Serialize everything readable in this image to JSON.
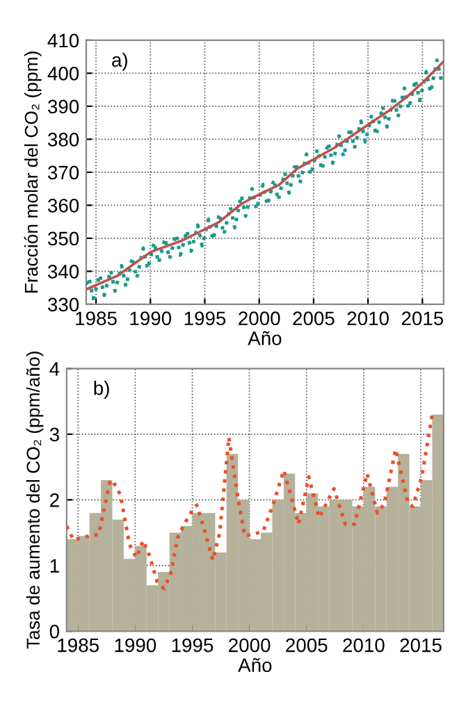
{
  "chart_data": [
    {
      "type": "line",
      "xlabel": "Año",
      "ylabel": "Fracción molar del CO₂ (ppm)",
      "annotations": [
        "a)"
      ],
      "xlim": [
        1984.1,
        2016.95
      ],
      "xticks": [
        1985,
        1990,
        1995,
        2000,
        2005,
        2010,
        2015
      ],
      "ylim": [
        330,
        410
      ],
      "yticks": [
        330,
        340,
        350,
        360,
        370,
        380,
        390,
        400,
        410
      ],
      "grid": true,
      "series": [
        {
          "color": "#1a9a8a",
          "line_style": "dotted",
          "x": [
            1984.1,
            1984.35,
            1984.75,
            1985.35,
            1985.75,
            1986.35,
            1986.75,
            1987.35,
            1987.75,
            1988.35,
            1988.75,
            1989.35,
            1989.75,
            1990.35,
            1990.75,
            1991.35,
            1991.75,
            1992.35,
            1992.75,
            1993.35,
            1993.75,
            1994.35,
            1994.75,
            1995.35,
            1995.75,
            1996.35,
            1996.75,
            1997.35,
            1997.75,
            1998.35,
            1998.75,
            1999.35,
            1999.75,
            2000.35,
            2000.75,
            2001.35,
            2001.75,
            2002.35,
            2002.75,
            2003.35,
            2003.75,
            2004.35,
            2004.75,
            2005.35,
            2005.75,
            2006.35,
            2006.75,
            2007.35,
            2007.75,
            2008.35,
            2008.75,
            2009.35,
            2009.75,
            2010.35,
            2010.75,
            2011.35,
            2011.75,
            2012.35,
            2012.75,
            2013.35,
            2013.75,
            2014.35,
            2014.75,
            2015.35,
            2015.75,
            2016.35,
            2016.75
          ],
          "values": [
            336,
            338.0,
            331.7,
            339.0,
            332.7,
            340.3,
            334.0,
            341.7,
            335.4,
            344.2,
            337.9,
            347.0,
            340.7,
            348.8,
            342.5,
            350.0,
            343.7,
            351.2,
            344.9,
            352.4,
            346.1,
            354.0,
            347.7,
            355.8,
            349.5,
            357.5,
            351.2,
            359.5,
            353.2,
            363.0,
            356.7,
            365.0,
            358.7,
            366.3,
            360.0,
            367.8,
            361.5,
            370.0,
            363.7,
            373.0,
            366.7,
            375.5,
            369.2,
            377.0,
            370.7,
            379.0,
            372.7,
            381.0,
            374.7,
            383.5,
            377.2,
            385.5,
            379.2,
            387.5,
            381.2,
            390.0,
            383.7,
            393.0,
            386.7,
            395.5,
            389.2,
            398.0,
            391.7,
            400.5,
            394.2,
            404.0,
            397.7
          ]
        },
        {
          "color": "#c0504d",
          "line_style": "solid",
          "x": [
            1984.1,
            1987.0,
            1988.6,
            1990.0,
            1992.9,
            1994.2,
            1996.3,
            1998.4,
            2000.0,
            2001.8,
            2003.5,
            2005.0,
            2006.9,
            2010.0,
            2011.9,
            2013.6,
            2015.0,
            2016.9
          ],
          "values": [
            334.5,
            338.7,
            342.5,
            345.8,
            349.3,
            351.4,
            354.9,
            360.5,
            363.3,
            366.1,
            371.1,
            373.9,
            377.4,
            384.4,
            388.6,
            392.9,
            397.1,
            403.4
          ]
        }
      ]
    },
    {
      "type": "histogram",
      "xlabel": "Año",
      "ylabel": "Tasa de aumento del CO₂ (ppm/año)",
      "annotations": [
        "b)"
      ],
      "xlim": [
        1984,
        2017
      ],
      "xticks": [
        1985,
        1990,
        1995,
        2000,
        2005,
        2010,
        2015
      ],
      "ylim": [
        0,
        4
      ],
      "yticks": [
        0,
        1,
        2,
        3,
        4
      ],
      "grid": true,
      "series": [
        {
          "color": "#b5b19a",
          "bins": [
            1984,
            1985,
            1986,
            1987,
            1988,
            1989,
            1990,
            1991,
            1992,
            1993,
            1994,
            1995,
            1996,
            1997,
            1998,
            1999,
            2000,
            2001,
            2002,
            2003,
            2004,
            2005,
            2006,
            2007,
            2008,
            2009,
            2010,
            2011,
            2012,
            2013,
            2014,
            2015,
            2016,
            2017
          ],
          "values": [
            1.4,
            1.45,
            1.8,
            2.3,
            1.7,
            1.1,
            1.3,
            0.7,
            0.9,
            1.5,
            1.6,
            1.8,
            1.8,
            1.2,
            2.7,
            2.0,
            1.4,
            1.5,
            2.0,
            2.4,
            1.8,
            2.1,
            1.9,
            2.0,
            2.0,
            1.9,
            2.2,
            1.9,
            2.2,
            2.7,
            1.9,
            2.3,
            3.3
          ]
        },
        {
          "type": "line",
          "color": "#e8502a",
          "line_style": "dotted",
          "x": [
            1984.0,
            1984.6,
            1986.2,
            1986.8,
            1987.8,
            1988.0,
            1988.7,
            1989.5,
            1990.1,
            1990.7,
            1991.3,
            1991.9,
            1992.5,
            1993.1,
            1993.7,
            1994.3,
            1995.1,
            1995.4,
            1996.0,
            1996.8,
            1997.4,
            1998.2,
            1999.0,
            1999.6,
            2000.4,
            2001.2,
            2002.1,
            2003.0,
            2003.7,
            2004.3,
            2005.2,
            2006.1,
            2007.4,
            2008.4,
            2009.2,
            2010.3,
            2011.2,
            2011.8,
            2012.8,
            2013.9,
            2014.3,
            2015.1,
            2016.0,
            2016.2
          ],
          "values": [
            1.6,
            1.39,
            1.46,
            1.47,
            2.28,
            2.3,
            2.08,
            1.32,
            1.12,
            1.38,
            1.13,
            0.76,
            0.65,
            0.86,
            1.42,
            1.63,
            1.87,
            1.92,
            1.58,
            1.08,
            1.5,
            2.95,
            2.02,
            1.45,
            1.48,
            1.52,
            1.94,
            2.45,
            2.02,
            1.63,
            2.35,
            1.73,
            2.17,
            1.63,
            1.63,
            2.4,
            1.8,
            1.94,
            2.77,
            1.94,
            1.9,
            2.36,
            3.3,
            3.28
          ]
        }
      ]
    }
  ]
}
